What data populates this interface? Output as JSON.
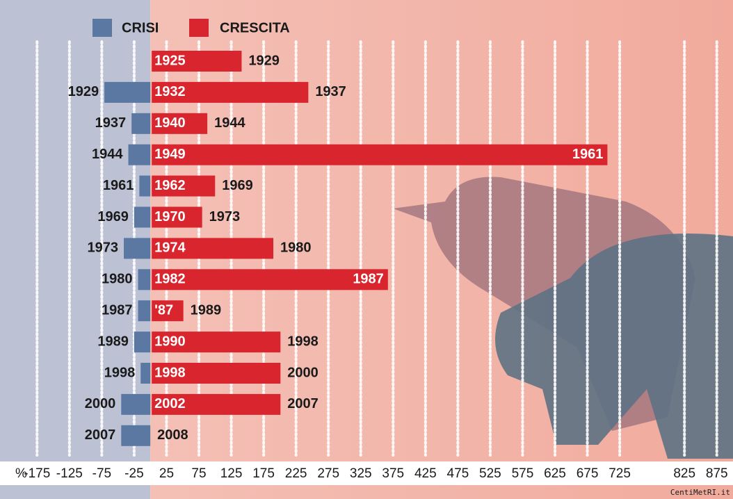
{
  "chart_data": {
    "type": "diverging-bar",
    "x_label": "%",
    "source": "CentiMetRI.it",
    "series": [
      {
        "name": "CRISI",
        "color": "#5b78a3",
        "values": [
          null,
          -71,
          -29,
          -34,
          -17,
          -25,
          -41,
          -19,
          -19,
          -25,
          -15,
          -45,
          -45
        ],
        "labels": [
          null,
          "1929",
          "1937",
          "1944",
          "1961",
          "1969",
          "1973",
          "1980",
          "1987",
          "1989",
          "1998",
          "2000",
          "2007"
        ]
      },
      {
        "name": "CRESCITA",
        "color": "#d9262e",
        "values": [
          141,
          244,
          88,
          706,
          100,
          80,
          190,
          367,
          51,
          201,
          201,
          201,
          null
        ],
        "labels": [
          "1925",
          "1932",
          "1940",
          "1949",
          "1962",
          "1970",
          "1974",
          "1982",
          "'87",
          "1990",
          "1998",
          "2002",
          null
        ],
        "end_labels": [
          "1929",
          "1937",
          "1944",
          "1961",
          "1969",
          "1973",
          "1980",
          "1987",
          "1989",
          "1998",
          "2000",
          "2007",
          "2008"
        ]
      }
    ],
    "xlim": [
      -200,
      900
    ],
    "xticks": [
      -175,
      -125,
      -75,
      -25,
      25,
      75,
      125,
      175,
      225,
      275,
      325,
      375,
      425,
      475,
      525,
      575,
      625,
      675,
      725,
      825,
      875
    ]
  }
}
